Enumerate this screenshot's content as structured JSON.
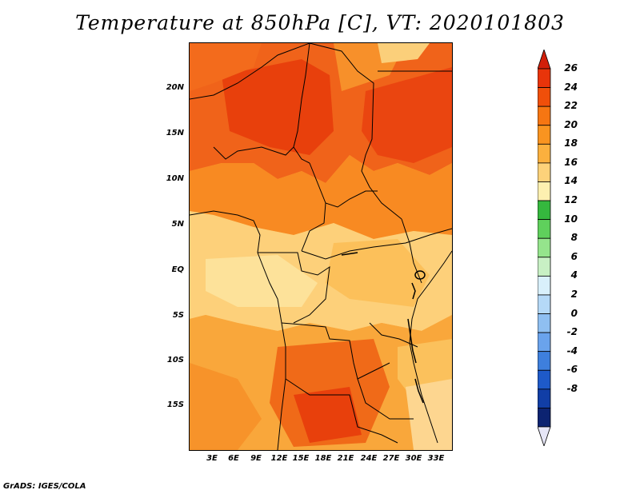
{
  "title": "Temperature at 850hPa [C], VT: 2020101803",
  "footer": "GrADS: IGES/COLA",
  "latitude_labels": [
    "20N",
    "15N",
    "10N",
    "5N",
    "EQ",
    "5S",
    "10S",
    "15S"
  ],
  "longitude_labels": [
    "3E",
    "6E",
    "9E",
    "12E",
    "15E",
    "18E",
    "21E",
    "24E",
    "27E",
    "30E",
    "33E"
  ],
  "colorbar": {
    "labels": [
      "26",
      "24",
      "22",
      "20",
      "18",
      "16",
      "14",
      "12",
      "10",
      "8",
      "6",
      "4",
      "2",
      "0",
      "-2",
      "-4",
      "-6",
      "-8"
    ],
    "colors": [
      "#e8340a",
      "#f04f0a",
      "#f67612",
      "#f99420",
      "#fbb03e",
      "#fdd27a",
      "#fdf0b0",
      "#35b83e",
      "#5fd05c",
      "#95e48c",
      "#c8f0c4",
      "#d9f0fb",
      "#b5d9f7",
      "#8fbff1",
      "#6aa3ec",
      "#3e7fdd",
      "#1e5ac9",
      "#113ea6",
      "#0c2371"
    ],
    "top_color": "#d11f0a",
    "bottom_color": "#e6e6f7"
  },
  "map": {
    "lon_range": [
      0,
      35
    ],
    "lat_range": [
      -19.5,
      24.5
    ],
    "region": "Central Africa"
  }
}
